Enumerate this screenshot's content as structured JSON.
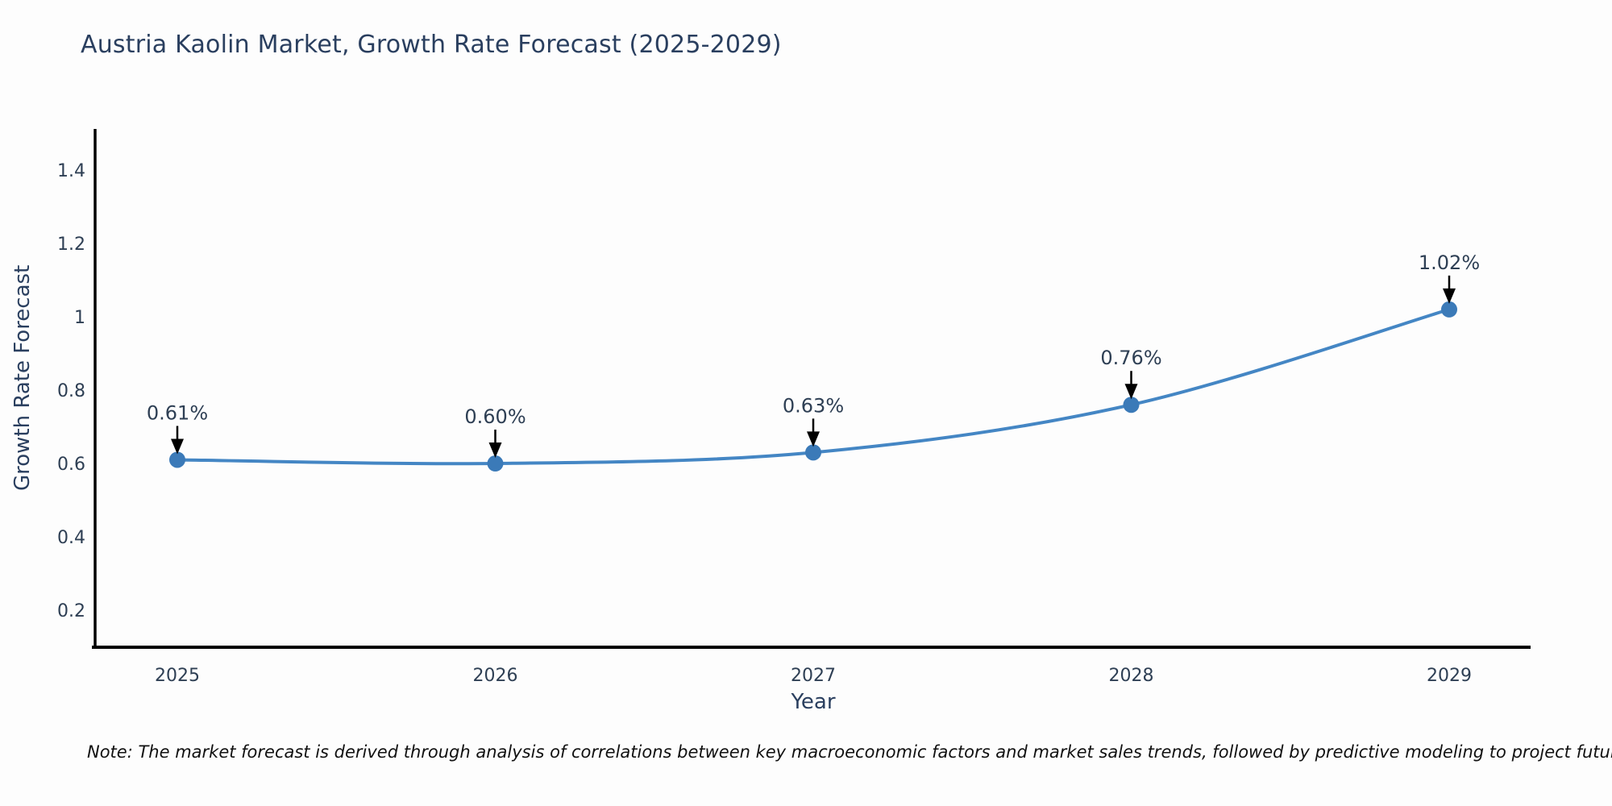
{
  "title": "Austria Kaolin Market, Growth Rate Forecast (2025-2029)",
  "note": "Note: The market forecast is derived through analysis of correlations between key macroeconomic factors and market sales trends, followed by predictive modeling to project future sales",
  "chart_data": {
    "type": "line",
    "title": "Austria Kaolin Market, Growth Rate Forecast (2025-2029)",
    "xlabel": "Year",
    "ylabel": "Growth Rate Forecast",
    "categories": [
      "2025",
      "2026",
      "2027",
      "2028",
      "2029"
    ],
    "values": [
      0.61,
      0.6,
      0.63,
      0.76,
      1.02
    ],
    "point_labels": [
      "0.61%",
      "0.60%",
      "0.63%",
      "0.76%",
      "1.02%"
    ],
    "ytick_values": [
      0.2,
      0.4,
      0.6,
      0.8,
      1,
      1.2,
      1.4
    ],
    "ytick_labels": [
      "0.2",
      "0.4",
      "0.6",
      "0.8",
      "1",
      "1.2",
      "1.4"
    ],
    "ylim": [
      0.099,
      1.512
    ],
    "grid": false,
    "legend": "none",
    "line_shape": "spline",
    "colors": {
      "line": "#4486c4",
      "marker": "#3b7ab8",
      "axis": "#000000",
      "tick_text": "#2e3f54",
      "annotation_text": "#2e3f54",
      "arrow": "#000000"
    }
  }
}
